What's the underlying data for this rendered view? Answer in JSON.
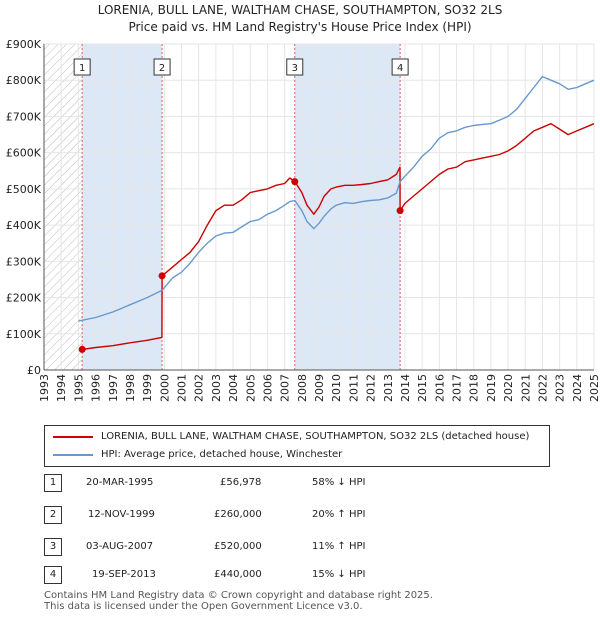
{
  "title_line1": "LORENIA, BULL LANE, WALTHAM CHASE, SOUTHAMPTON, SO32 2LS",
  "title_line2": "Price paid vs. HM Land Registry's House Price Index (HPI)",
  "colors": {
    "property": "#cc0000",
    "hpi": "#6699cc",
    "shade": "#dde8f6",
    "vline": "#e06060"
  },
  "chart_data": {
    "type": "line",
    "xlim": [
      1993,
      2025
    ],
    "ylim": [
      0,
      900000
    ],
    "y_ticks": [
      0,
      100000,
      200000,
      300000,
      400000,
      500000,
      600000,
      700000,
      800000,
      900000
    ],
    "y_tick_labels": [
      "£0",
      "£100K",
      "£200K",
      "£300K",
      "£400K",
      "£500K",
      "£600K",
      "£700K",
      "£800K",
      "£900K"
    ],
    "x_ticks": [
      1993,
      1994,
      1995,
      1996,
      1997,
      1998,
      1999,
      2000,
      2001,
      2002,
      2003,
      2004,
      2005,
      2006,
      2007,
      2008,
      2009,
      2010,
      2011,
      2012,
      2013,
      2014,
      2015,
      2016,
      2017,
      2018,
      2019,
      2020,
      2021,
      2022,
      2023,
      2024,
      2025
    ],
    "x_tick_labels": [
      "1993",
      "1994",
      "1995",
      "1996",
      "1997",
      "1998",
      "1999",
      "2000",
      "2001",
      "2002",
      "2003",
      "2004",
      "2005",
      "2006",
      "2007",
      "2008",
      "2009",
      "2010",
      "2011",
      "2012",
      "2013",
      "2014",
      "2015",
      "2016",
      "2017",
      "2018",
      "2019",
      "2020",
      "2021",
      "2022",
      "2023",
      "2024",
      "2025"
    ],
    "shaded_spans": [
      [
        1995.22,
        1999.87
      ],
      [
        2007.59,
        2013.72
      ]
    ],
    "hatched_range": [
      1993,
      1995.22
    ],
    "series": [
      {
        "name": "LORENIA, BULL LANE, WALTHAM CHASE, SOUTHAMPTON, SO32 2LS (detached house)",
        "color": "#cc0000",
        "x": [
          1995.22,
          1996,
          1997,
          1998,
          1999,
          1999.86,
          1999.87,
          2000.5,
          2001,
          2001.5,
          2002,
          2002.5,
          2003,
          2003.5,
          2004,
          2004.5,
          2005,
          2005.5,
          2006,
          2006.5,
          2007,
          2007.3,
          2007.59,
          2008,
          2008.3,
          2008.7,
          2009,
          2009.3,
          2009.7,
          2010,
          2010.5,
          2011,
          2011.5,
          2012,
          2012.5,
          2013,
          2013.5,
          2013.71,
          2013.72,
          2014,
          2014.5,
          2015,
          2015.5,
          2016,
          2016.5,
          2017,
          2017.5,
          2018,
          2018.5,
          2019,
          2019.5,
          2020,
          2020.5,
          2021,
          2021.5,
          2022,
          2022.5,
          2023,
          2023.5,
          2024,
          2024.5,
          2025
        ],
        "y": [
          56978,
          62000,
          67000,
          75000,
          82000,
          90000,
          260000,
          285000,
          305000,
          325000,
          355000,
          400000,
          440000,
          455000,
          455000,
          470000,
          490000,
          495000,
          500000,
          510000,
          515000,
          530000,
          520000,
          490000,
          455000,
          430000,
          450000,
          480000,
          500000,
          505000,
          510000,
          510000,
          512000,
          515000,
          520000,
          525000,
          540000,
          560000,
          440000,
          460000,
          480000,
          500000,
          520000,
          540000,
          555000,
          560000,
          575000,
          580000,
          585000,
          590000,
          595000,
          605000,
          620000,
          640000,
          660000,
          670000,
          680000,
          665000,
          650000,
          660000,
          670000,
          680000
        ]
      },
      {
        "name": "HPI: Average price, detached house, Winchester",
        "color": "#6699cc",
        "x": [
          1995,
          1996,
          1997,
          1998,
          1999,
          1999.87,
          2000.5,
          2001,
          2001.5,
          2002,
          2002.5,
          2003,
          2003.5,
          2004,
          2004.5,
          2005,
          2005.5,
          2006,
          2006.5,
          2007,
          2007.3,
          2007.59,
          2008,
          2008.3,
          2008.7,
          2009,
          2009.3,
          2009.7,
          2010,
          2010.5,
          2011,
          2011.5,
          2012,
          2012.5,
          2013,
          2013.5,
          2013.72,
          2014,
          2014.5,
          2015,
          2015.5,
          2016,
          2016.5,
          2017,
          2017.5,
          2018,
          2018.5,
          2019,
          2019.5,
          2020,
          2020.5,
          2021,
          2021.5,
          2022,
          2022.5,
          2023,
          2023.5,
          2024,
          2024.5,
          2025
        ],
        "y": [
          135000,
          145000,
          160000,
          180000,
          200000,
          220000,
          255000,
          270000,
          295000,
          325000,
          350000,
          370000,
          378000,
          380000,
          395000,
          410000,
          415000,
          430000,
          440000,
          455000,
          465000,
          468000,
          440000,
          410000,
          390000,
          405000,
          425000,
          445000,
          455000,
          462000,
          460000,
          465000,
          468000,
          470000,
          475000,
          488000,
          520000,
          535000,
          560000,
          590000,
          610000,
          640000,
          655000,
          660000,
          670000,
          675000,
          678000,
          680000,
          690000,
          700000,
          720000,
          750000,
          780000,
          810000,
          800000,
          790000,
          775000,
          780000,
          790000,
          800000
        ]
      }
    ],
    "sales": [
      {
        "label": "1",
        "date": "20-MAR-1995",
        "price": "£56,978",
        "hpi": "58% ↓ HPI",
        "x": 1995.22,
        "y": 56978
      },
      {
        "label": "2",
        "date": "12-NOV-1999",
        "price": "£260,000",
        "hpi": "20% ↑ HPI",
        "x": 1999.87,
        "y": 260000
      },
      {
        "label": "3",
        "date": "03-AUG-2007",
        "price": "£520,000",
        "hpi": "11% ↑ HPI",
        "x": 2007.59,
        "y": 520000
      },
      {
        "label": "4",
        "date": "19-SEP-2013",
        "price": "£440,000",
        "hpi": "15% ↓ HPI",
        "x": 2013.72,
        "y": 440000
      }
    ]
  },
  "legend": {
    "property_label": "LORENIA, BULL LANE, WALTHAM CHASE, SOUTHAMPTON, SO32 2LS (detached house)",
    "hpi_label": "HPI: Average price, detached house, Winchester"
  },
  "footer": {
    "line1": "Contains HM Land Registry data © Crown copyright and database right 2025.",
    "line2": "This data is licensed under the Open Government Licence v3.0."
  }
}
